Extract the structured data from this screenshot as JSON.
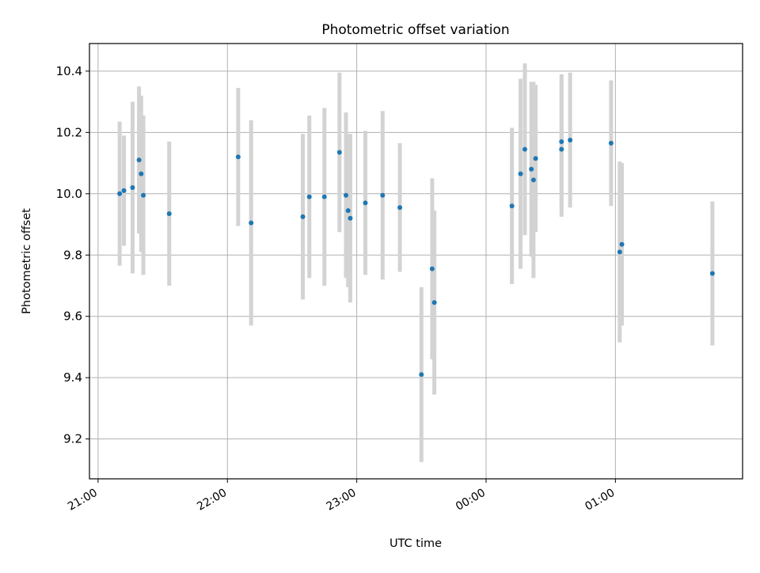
{
  "chart_data": {
    "type": "scatter",
    "title": "Photometric offset variation",
    "xlabel": "UTC time",
    "ylabel": "Photometric offset",
    "xlim": [
      "20:56",
      "25:59"
    ],
    "ylim": [
      9.07,
      10.49
    ],
    "x_ticks": [
      "21:00",
      "22:00",
      "23:00",
      "00:00",
      "01:00"
    ],
    "y_ticks": [
      "9.2",
      "9.4",
      "9.6",
      "9.8",
      "10.0",
      "10.2",
      "10.4"
    ],
    "grid": true,
    "marker_color": "#1f77b4",
    "errorbar_color": "#d3d3d3",
    "points": [
      {
        "t": "21:10",
        "y": 10.0,
        "err": 0.235
      },
      {
        "t": "21:12",
        "y": 10.01,
        "err": 0.18
      },
      {
        "t": "21:16",
        "y": 10.02,
        "err": 0.28
      },
      {
        "t": "21:19",
        "y": 10.11,
        "err": 0.24
      },
      {
        "t": "21:20",
        "y": 10.065,
        "err": 0.255
      },
      {
        "t": "21:21",
        "y": 9.995,
        "err": 0.26
      },
      {
        "t": "21:33",
        "y": 9.935,
        "err": 0.235
      },
      {
        "t": "22:05",
        "y": 10.12,
        "err": 0.225
      },
      {
        "t": "22:11",
        "y": 9.905,
        "err": 0.335
      },
      {
        "t": "22:35",
        "y": 9.925,
        "err": 0.27
      },
      {
        "t": "22:38",
        "y": 9.99,
        "err": 0.265
      },
      {
        "t": "22:45",
        "y": 9.99,
        "err": 0.29
      },
      {
        "t": "22:52",
        "y": 10.135,
        "err": 0.26
      },
      {
        "t": "22:55",
        "y": 9.995,
        "err": 0.27
      },
      {
        "t": "22:56",
        "y": 9.945,
        "err": 0.25
      },
      {
        "t": "22:57",
        "y": 9.92,
        "err": 0.275
      },
      {
        "t": "23:04",
        "y": 9.97,
        "err": 0.235
      },
      {
        "t": "23:12",
        "y": 9.995,
        "err": 0.275
      },
      {
        "t": "23:20",
        "y": 9.955,
        "err": 0.21
      },
      {
        "t": "23:30",
        "y": 9.41,
        "err": 0.285
      },
      {
        "t": "23:35",
        "y": 9.755,
        "err": 0.295
      },
      {
        "t": "23:36",
        "y": 9.645,
        "err": 0.3
      },
      {
        "t": "24:12",
        "y": 9.96,
        "err": 0.255
      },
      {
        "t": "24:16",
        "y": 10.065,
        "err": 0.31
      },
      {
        "t": "24:18",
        "y": 10.145,
        "err": 0.28
      },
      {
        "t": "24:21",
        "y": 10.08,
        "err": 0.285
      },
      {
        "t": "24:22",
        "y": 10.045,
        "err": 0.32
      },
      {
        "t": "24:23",
        "y": 10.115,
        "err": 0.24
      },
      {
        "t": "24:35",
        "y": 10.145,
        "err": 0.22
      },
      {
        "t": "24:35",
        "y": 10.17,
        "err": 0.22
      },
      {
        "t": "24:39",
        "y": 10.175,
        "err": 0.22
      },
      {
        "t": "24:58",
        "y": 10.165,
        "err": 0.205
      },
      {
        "t": "25:02",
        "y": 9.81,
        "err": 0.295
      },
      {
        "t": "25:03",
        "y": 9.835,
        "err": 0.265
      },
      {
        "t": "25:45",
        "y": 9.74,
        "err": 0.235
      }
    ]
  }
}
